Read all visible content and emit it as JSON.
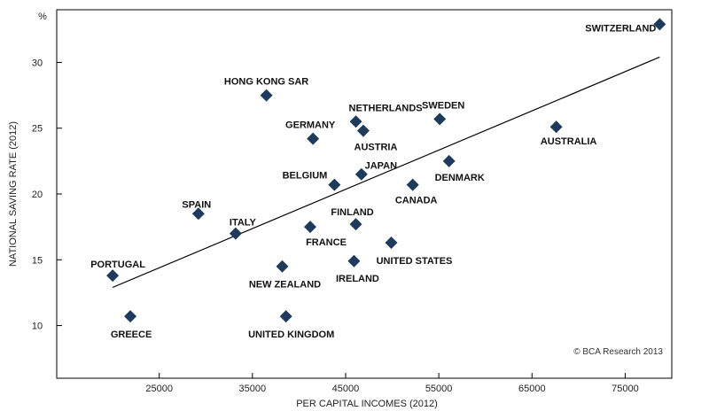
{
  "chart_data": {
    "type": "scatter",
    "title": "",
    "xlabel": "PER CAPITAL INCOMES (2012)",
    "ylabel": "NATIONAL SAVING RATE (2012)",
    "y_unit": "%",
    "xlim": [
      14000,
      80000
    ],
    "ylim": [
      6,
      34
    ],
    "x_ticks": [
      25000,
      35000,
      45000,
      55000,
      65000,
      75000
    ],
    "y_ticks": [
      10,
      15,
      20,
      25,
      30
    ],
    "grid": false,
    "marker": "diamond",
    "marker_color": "#1f3b5c",
    "points": [
      {
        "label": "SWITZERLAND",
        "x": 78700,
        "y": 32.9
      },
      {
        "label": "HONG KONG SAR",
        "x": 36500,
        "y": 27.5
      },
      {
        "label": "NETHERLANDS",
        "x": 46100,
        "y": 25.5
      },
      {
        "label": "SWEDEN",
        "x": 55100,
        "y": 25.7
      },
      {
        "label": "AUSTRALIA",
        "x": 67600,
        "y": 25.1
      },
      {
        "label": "AUSTRIA",
        "x": 46900,
        "y": 24.8
      },
      {
        "label": "GERMANY",
        "x": 41500,
        "y": 24.2
      },
      {
        "label": "DENMARK",
        "x": 56100,
        "y": 22.5
      },
      {
        "label": "JAPAN",
        "x": 46700,
        "y": 21.5
      },
      {
        "label": "BELGIUM",
        "x": 43800,
        "y": 20.7
      },
      {
        "label": "CANADA",
        "x": 52200,
        "y": 20.7
      },
      {
        "label": "SPAIN",
        "x": 29200,
        "y": 18.5
      },
      {
        "label": "FINLAND",
        "x": 46100,
        "y": 17.7
      },
      {
        "label": "FRANCE",
        "x": 41200,
        "y": 17.5
      },
      {
        "label": "ITALY",
        "x": 33200,
        "y": 17.0
      },
      {
        "label": "UNITED STATES",
        "x": 49900,
        "y": 16.3
      },
      {
        "label": "IRELAND",
        "x": 45900,
        "y": 14.9
      },
      {
        "label": "NEW ZEALAND",
        "x": 38200,
        "y": 14.5
      },
      {
        "label": "PORTUGAL",
        "x": 20000,
        "y": 13.8
      },
      {
        "label": "GREECE",
        "x": 21900,
        "y": 10.7
      },
      {
        "label": "UNITED KINGDOM",
        "x": 38600,
        "y": 10.7
      }
    ],
    "trendline": {
      "x": [
        20000,
        78700
      ],
      "y": [
        12.9,
        30.4
      ]
    },
    "credit": "© BCA Research 2013"
  }
}
